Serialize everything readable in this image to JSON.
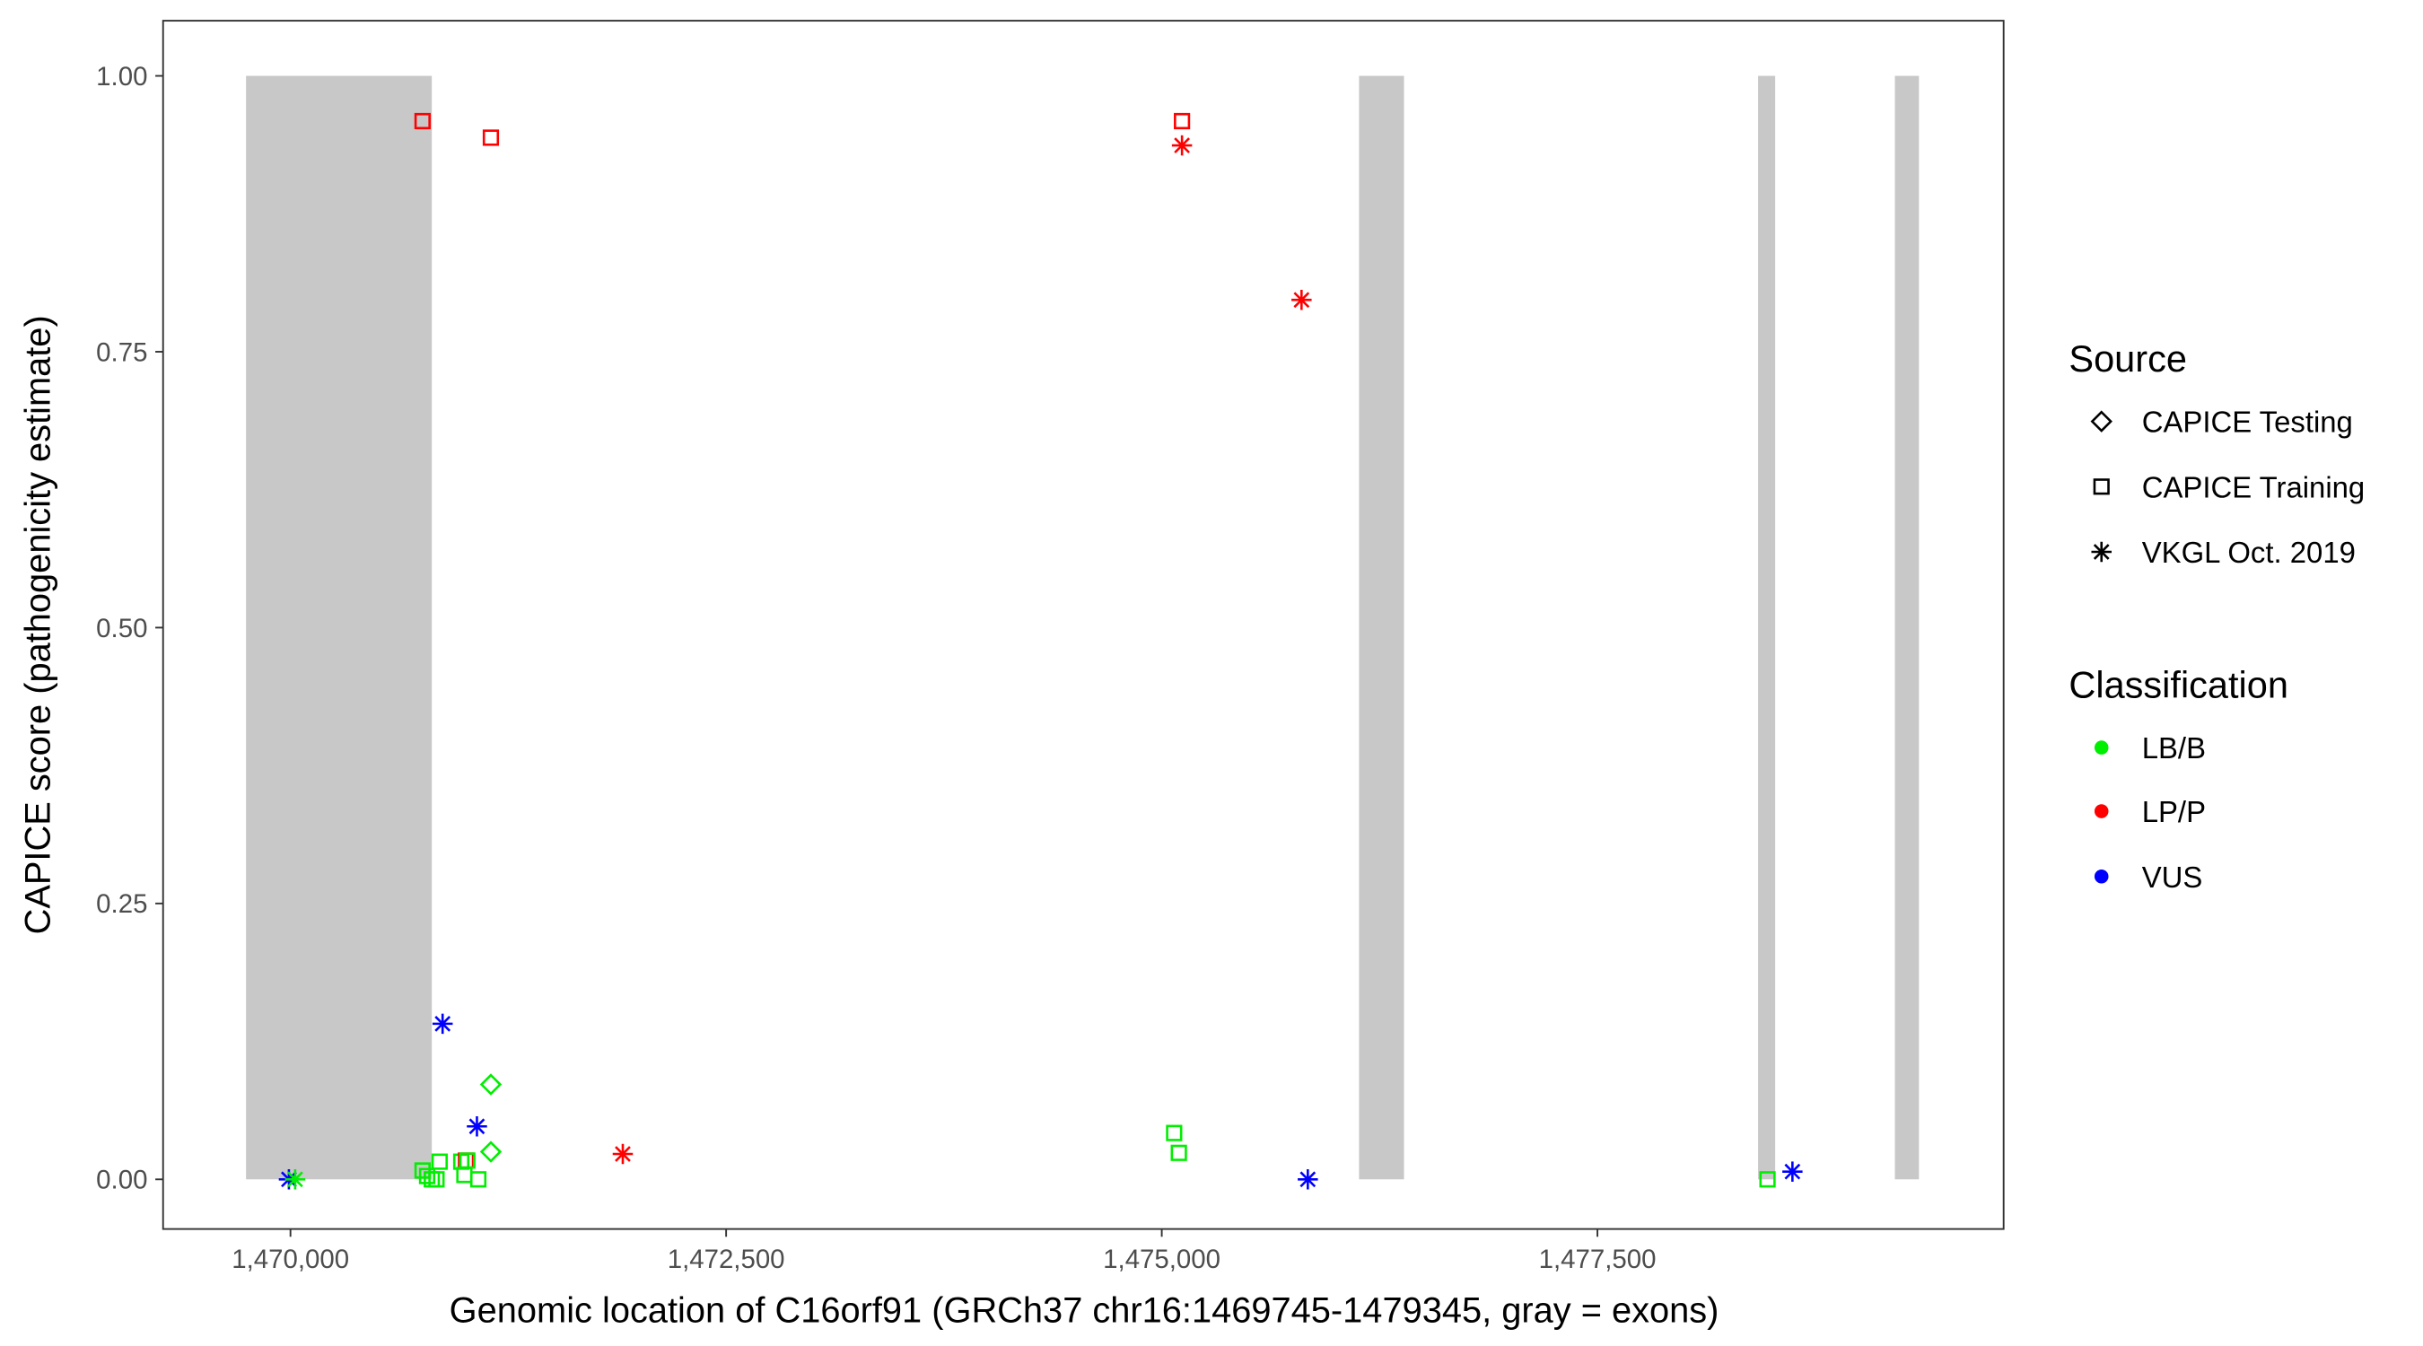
{
  "chart_data": {
    "type": "scatter",
    "xlabel": "Genomic location of C16orf91 (GRCh37 chr16:1469745-1479345, gray = exons)",
    "ylabel": "CAPICE score (pathogenicity estimate)",
    "xlim": [
      1469269,
      1479831
    ],
    "ylim": [
      -0.045,
      1.05
    ],
    "x_ticks": [
      1470000,
      1472500,
      1475000,
      1477500
    ],
    "x_tick_labels": [
      "1,470,000",
      "1,472,500",
      "1,475,000",
      "1,477,500"
    ],
    "y_ticks": [
      0,
      0.25,
      0.5,
      0.75,
      1.0
    ],
    "y_tick_labels": [
      "0.00",
      "0.25",
      "0.50",
      "0.75",
      "1.00"
    ],
    "grid": false,
    "exon_color": "#c8c8c8",
    "exons": [
      {
        "start": 1469745,
        "end": 1470811
      },
      {
        "start": 1476132,
        "end": 1476390
      },
      {
        "start": 1478422,
        "end": 1478520
      },
      {
        "start": 1479207,
        "end": 1479345
      }
    ],
    "legend_placement": "right",
    "legend": {
      "source": {
        "title": "Source",
        "items": [
          {
            "label": "CAPICE Testing",
            "shape": "diamond"
          },
          {
            "label": "CAPICE Training",
            "shape": "square"
          },
          {
            "label": "VKGL Oct. 2019",
            "shape": "star"
          }
        ]
      },
      "classification": {
        "title": "Classification",
        "items": [
          {
            "label": "LB/B",
            "color": "#00ee00"
          },
          {
            "label": "LP/P",
            "color": "#ff0000"
          },
          {
            "label": "VUS",
            "color": "#0000ff"
          }
        ]
      }
    },
    "points": [
      {
        "x": 1469991,
        "y": 0.0,
        "source": "VKGL Oct. 2019",
        "class": "VUS"
      },
      {
        "x": 1470027,
        "y": 0.0,
        "source": "VKGL Oct. 2019",
        "class": "LB/B"
      },
      {
        "x": 1470758,
        "y": 0.959,
        "source": "CAPICE Training",
        "class": "LP/P"
      },
      {
        "x": 1471150,
        "y": 0.944,
        "source": "CAPICE Training",
        "class": "LP/P"
      },
      {
        "x": 1470873,
        "y": 0.141,
        "source": "VKGL Oct. 2019",
        "class": "VUS"
      },
      {
        "x": 1471150,
        "y": 0.086,
        "source": "CAPICE Testing",
        "class": "LB/B"
      },
      {
        "x": 1471070,
        "y": 0.048,
        "source": "VKGL Oct. 2019",
        "class": "VUS"
      },
      {
        "x": 1471150,
        "y": 0.025,
        "source": "CAPICE Testing",
        "class": "LB/B"
      },
      {
        "x": 1471907,
        "y": 0.023,
        "source": "VKGL Oct. 2019",
        "class": "LP/P"
      },
      {
        "x": 1470758,
        "y": 0.008,
        "source": "CAPICE Training",
        "class": "LB/B"
      },
      {
        "x": 1470784,
        "y": 0.003,
        "source": "CAPICE Training",
        "class": "LB/B"
      },
      {
        "x": 1470811,
        "y": 0.0,
        "source": "CAPICE Training",
        "class": "LB/B"
      },
      {
        "x": 1470838,
        "y": 0.0,
        "source": "CAPICE Training",
        "class": "LB/B"
      },
      {
        "x": 1470856,
        "y": 0.016,
        "source": "CAPICE Training",
        "class": "LB/B"
      },
      {
        "x": 1470980,
        "y": 0.016,
        "source": "CAPICE Training",
        "class": "LB/B"
      },
      {
        "x": 1471007,
        "y": 0.017,
        "source": "CAPICE Training",
        "class": "LP/P"
      },
      {
        "x": 1471015,
        "y": 0.017,
        "source": "CAPICE Training",
        "class": "LB/B"
      },
      {
        "x": 1470998,
        "y": 0.004,
        "source": "CAPICE Training",
        "class": "LB/B"
      },
      {
        "x": 1471078,
        "y": 0.0,
        "source": "CAPICE Training",
        "class": "LB/B"
      },
      {
        "x": 1475116,
        "y": 0.959,
        "source": "CAPICE Training",
        "class": "LP/P"
      },
      {
        "x": 1475116,
        "y": 0.937,
        "source": "VKGL Oct. 2019",
        "class": "LP/P"
      },
      {
        "x": 1475802,
        "y": 0.797,
        "source": "VKGL Oct. 2019",
        "class": "LP/P"
      },
      {
        "x": 1475071,
        "y": 0.042,
        "source": "CAPICE Training",
        "class": "LB/B"
      },
      {
        "x": 1475098,
        "y": 0.024,
        "source": "CAPICE Training",
        "class": "LB/B"
      },
      {
        "x": 1475838,
        "y": 0.0,
        "source": "VKGL Oct. 2019",
        "class": "VUS"
      },
      {
        "x": 1478476,
        "y": 0.0,
        "source": "CAPICE Training",
        "class": "LB/B"
      },
      {
        "x": 1478619,
        "y": 0.007,
        "source": "VKGL Oct. 2019",
        "class": "VUS"
      }
    ]
  }
}
